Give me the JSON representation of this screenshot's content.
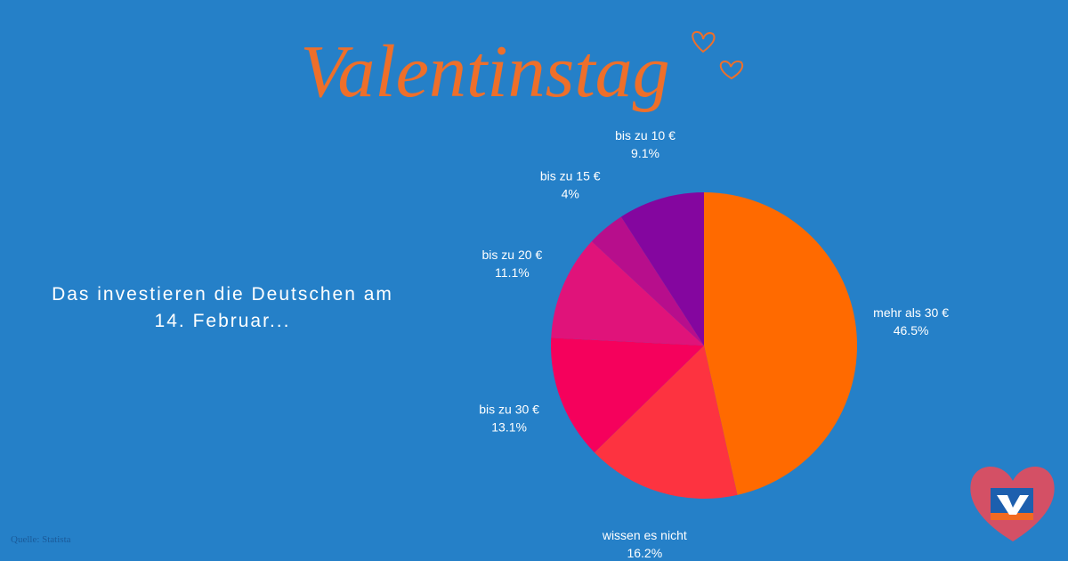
{
  "chart_data": {
    "type": "pie",
    "title": "Valentinstag",
    "subtitle": "Das investieren die Deutschen am 14. Februar...",
    "source": "Quelle: Statista",
    "categories": [
      "mehr als 30 €",
      "wissen es nicht",
      "bis zu 30 €",
      "bis zu 20 €",
      "bis zu 15 €",
      "bis zu 10 €"
    ],
    "values": [
      46.5,
      16.2,
      13.1,
      11.1,
      4,
      9.1
    ],
    "value_labels": [
      "46.5%",
      "16.2%",
      "13.1%",
      "11.1%",
      "4%",
      "9.1%"
    ],
    "colors": [
      "#ff6a00",
      "#fd3340",
      "#f5015c",
      "#e0137a",
      "#b70e8c",
      "#84069f"
    ]
  }
}
